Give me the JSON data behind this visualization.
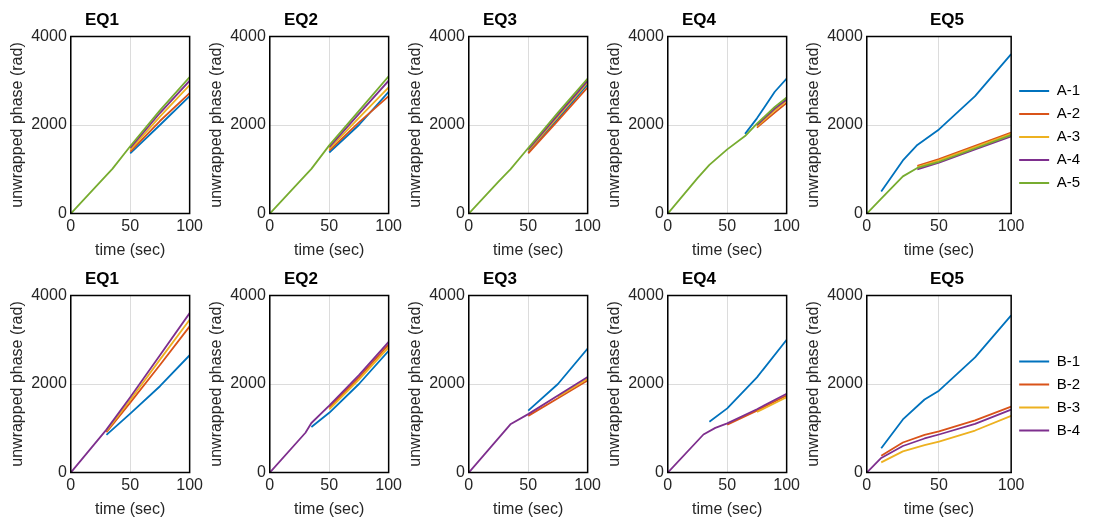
{
  "chart_data": [
    {
      "type": "line",
      "title": "EQ1",
      "xlabel": "time (sec)",
      "ylabel": "unwrapped phase (rad)",
      "x": [
        50,
        75,
        100
      ],
      "xlim": [
        0,
        100
      ],
      "xticks": [
        0,
        50,
        100
      ],
      "ylim": [
        0,
        4000
      ],
      "yticks": [
        0,
        2000,
        4000
      ],
      "grid": true,
      "legend": false,
      "series": [
        {
          "color": "#0072bd",
          "values": [
            1360,
            2000,
            2650
          ]
        },
        {
          "color": "#d95319",
          "values": [
            1400,
            2090,
            2720
          ]
        },
        {
          "color": "#edb120",
          "values": [
            1440,
            2190,
            2900
          ]
        },
        {
          "color": "#7e2f8e",
          "values": [
            1480,
            2270,
            3000
          ]
        },
        {
          "color": "#77ac30",
          "x": [
            0,
            25,
            35,
            50,
            75,
            100
          ],
          "values": [
            0,
            720,
            1010,
            1520,
            2330,
            3080
          ]
        }
      ]
    },
    {
      "type": "line",
      "title": "EQ2",
      "xlabel": "time (sec)",
      "ylabel": "unwrapped phase (rad)",
      "x": [
        50,
        75,
        100
      ],
      "xlim": [
        0,
        100
      ],
      "xticks": [
        0,
        50,
        100
      ],
      "ylim": [
        0,
        4000
      ],
      "yticks": [
        0,
        2000,
        4000
      ],
      "grid": true,
      "legend": false,
      "series": [
        {
          "color": "#0072bd",
          "values": [
            1380,
            2000,
            2750
          ]
        },
        {
          "color": "#d95319",
          "values": [
            1420,
            2060,
            2650
          ]
        },
        {
          "color": "#edb120",
          "values": [
            1460,
            2160,
            2850
          ]
        },
        {
          "color": "#7e2f8e",
          "values": [
            1500,
            2250,
            3000
          ]
        },
        {
          "color": "#77ac30",
          "x": [
            0,
            25,
            35,
            50,
            75,
            100
          ],
          "values": [
            0,
            720,
            1010,
            1540,
            2320,
            3100
          ]
        }
      ]
    },
    {
      "type": "line",
      "title": "EQ3",
      "xlabel": "time (sec)",
      "ylabel": "unwrapped phase (rad)",
      "x": [
        50,
        75,
        100
      ],
      "xlim": [
        0,
        100
      ],
      "xticks": [
        0,
        50,
        100
      ],
      "ylim": [
        0,
        4000
      ],
      "yticks": [
        0,
        2000,
        4000
      ],
      "grid": true,
      "legend": false,
      "series": [
        {
          "color": "#0072bd",
          "values": [
            1400,
            2140,
            2920
          ]
        },
        {
          "color": "#d95319",
          "values": [
            1360,
            2100,
            2850
          ]
        },
        {
          "color": "#edb120",
          "values": [
            1420,
            2190,
            2960
          ]
        },
        {
          "color": "#7e2f8e",
          "values": [
            1450,
            2230,
            3000
          ]
        },
        {
          "color": "#77ac30",
          "x": [
            0,
            25,
            35,
            50,
            75,
            100
          ],
          "values": [
            0,
            720,
            1000,
            1480,
            2280,
            3050
          ]
        }
      ]
    },
    {
      "type": "line",
      "title": "EQ4",
      "xlabel": "time (sec)",
      "ylabel": "unwrapped phase (rad)",
      "x": [
        75,
        90,
        100
      ],
      "xlim": [
        0,
        100
      ],
      "xticks": [
        0,
        50,
        100
      ],
      "ylim": [
        0,
        4000
      ],
      "yticks": [
        0,
        2000,
        4000
      ],
      "grid": true,
      "legend": false,
      "series": [
        {
          "color": "#0072bd",
          "x": [
            65,
            75,
            90,
            100
          ],
          "values": [
            1800,
            2150,
            2750,
            3050
          ]
        },
        {
          "color": "#d95319",
          "values": [
            1940,
            2280,
            2500
          ]
        },
        {
          "color": "#edb120",
          "values": [
            1970,
            2330,
            2550
          ]
        },
        {
          "color": "#7e2f8e",
          "values": [
            2000,
            2370,
            2580
          ]
        },
        {
          "color": "#77ac30",
          "x": [
            0,
            25,
            35,
            50,
            65,
            75,
            90,
            100
          ],
          "values": [
            0,
            800,
            1100,
            1450,
            1750,
            2030,
            2410,
            2620
          ]
        }
      ]
    },
    {
      "type": "line",
      "title": "EQ5",
      "xlabel": "time (sec)",
      "ylabel": "unwrapped phase (rad)",
      "x": [
        35,
        50,
        75,
        100
      ],
      "xlim": [
        0,
        100
      ],
      "xticks": [
        0,
        50,
        100
      ],
      "ylim": [
        0,
        4000
      ],
      "yticks": [
        0,
        2000,
        4000
      ],
      "grid": true,
      "legend": "right",
      "series": [
        {
          "name": "A-1",
          "color": "#0072bd",
          "x": [
            10,
            25,
            35,
            50,
            75,
            100
          ],
          "values": [
            500,
            1200,
            1550,
            1900,
            2650,
            3600
          ]
        },
        {
          "name": "A-2",
          "color": "#d95319",
          "values": [
            1080,
            1230,
            1530,
            1830
          ]
        },
        {
          "name": "A-3",
          "color": "#edb120",
          "values": [
            1050,
            1200,
            1500,
            1800
          ]
        },
        {
          "name": "A-4",
          "color": "#7e2f8e",
          "values": [
            1000,
            1150,
            1450,
            1740
          ]
        },
        {
          "name": "A-5",
          "color": "#77ac30",
          "x": [
            0,
            10,
            25,
            35,
            50,
            75,
            100
          ],
          "values": [
            0,
            340,
            840,
            1030,
            1170,
            1470,
            1770
          ]
        }
      ]
    },
    {
      "type": "line",
      "title": "EQ1",
      "xlabel": "time (sec)",
      "ylabel": "unwrapped phase (rad)",
      "x": [
        30,
        50,
        75,
        100
      ],
      "xlim": [
        0,
        100
      ],
      "xticks": [
        0,
        50,
        100
      ],
      "ylim": [
        0,
        4000
      ],
      "yticks": [
        0,
        2000,
        4000
      ],
      "grid": true,
      "legend": false,
      "series": [
        {
          "color": "#0072bd",
          "values": [
            850,
            1330,
            1950,
            2650
          ]
        },
        {
          "color": "#d95319",
          "values": [
            910,
            1580,
            2430,
            3300
          ]
        },
        {
          "color": "#edb120",
          "values": [
            940,
            1640,
            2550,
            3450
          ]
        },
        {
          "color": "#7e2f8e",
          "x": [
            0,
            30,
            50,
            75,
            100
          ],
          "values": [
            0,
            970,
            1700,
            2650,
            3600
          ]
        }
      ]
    },
    {
      "type": "line",
      "title": "EQ2",
      "xlabel": "time (sec)",
      "ylabel": "unwrapped phase (rad)",
      "x": [
        50,
        75,
        100
      ],
      "xlim": [
        0,
        100
      ],
      "xticks": [
        0,
        50,
        100
      ],
      "ylim": [
        0,
        4000
      ],
      "yticks": [
        0,
        2000,
        4000
      ],
      "grid": true,
      "legend": false,
      "series": [
        {
          "color": "#0072bd",
          "x": [
            35,
            50,
            75,
            100
          ],
          "values": [
            1030,
            1350,
            2000,
            2750
          ]
        },
        {
          "color": "#d95319",
          "values": [
            1470,
            2150,
            2890
          ]
        },
        {
          "color": "#edb120",
          "values": [
            1430,
            2100,
            2830
          ]
        },
        {
          "color": "#7e2f8e",
          "x": [
            0,
            30,
            35,
            50,
            75,
            100
          ],
          "values": [
            0,
            900,
            1120,
            1510,
            2200,
            2950
          ]
        }
      ]
    },
    {
      "type": "line",
      "title": "EQ3",
      "xlabel": "time (sec)",
      "ylabel": "unwrapped phase (rad)",
      "x": [
        50,
        75,
        100
      ],
      "xlim": [
        0,
        100
      ],
      "xticks": [
        0,
        50,
        100
      ],
      "ylim": [
        0,
        4000
      ],
      "yticks": [
        0,
        2000,
        4000
      ],
      "grid": true,
      "legend": false,
      "series": [
        {
          "color": "#0072bd",
          "values": [
            1400,
            2000,
            2800
          ]
        },
        {
          "color": "#d95319",
          "values": [
            1280,
            1680,
            2080
          ]
        },
        {
          "color": "#edb120",
          "x": [
            75,
            100
          ],
          "values": [
            1710,
            2120
          ]
        },
        {
          "color": "#7e2f8e",
          "x": [
            0,
            35,
            50,
            75,
            100
          ],
          "values": [
            0,
            1090,
            1320,
            1740,
            2160
          ]
        }
      ]
    },
    {
      "type": "line",
      "title": "EQ4",
      "xlabel": "time (sec)",
      "ylabel": "unwrapped phase (rad)",
      "x": [
        50,
        75,
        100
      ],
      "xlim": [
        0,
        100
      ],
      "xticks": [
        0,
        50,
        100
      ],
      "ylim": [
        0,
        4000
      ],
      "yticks": [
        0,
        2000,
        4000
      ],
      "grid": true,
      "legend": false,
      "series": [
        {
          "color": "#0072bd",
          "x": [
            35,
            50,
            75,
            100
          ],
          "values": [
            1150,
            1450,
            2150,
            3000
          ]
        },
        {
          "color": "#d95319",
          "values": [
            1080,
            1400,
            1740
          ]
        },
        {
          "color": "#edb120",
          "x": [
            75,
            100
          ],
          "values": [
            1370,
            1700
          ]
        },
        {
          "color": "#7e2f8e",
          "x": [
            0,
            30,
            40,
            50,
            75,
            100
          ],
          "values": [
            0,
            860,
            1010,
            1110,
            1430,
            1780
          ]
        }
      ]
    },
    {
      "type": "line",
      "title": "EQ5",
      "xlabel": "time (sec)",
      "ylabel": "unwrapped phase (rad)",
      "x": [
        10,
        25,
        40,
        50,
        75,
        100
      ],
      "xlim": [
        0,
        100
      ],
      "xticks": [
        0,
        50,
        100
      ],
      "ylim": [
        0,
        4000
      ],
      "yticks": [
        0,
        2000,
        4000
      ],
      "grid": true,
      "legend": "right",
      "series": [
        {
          "name": "B-1",
          "color": "#0072bd",
          "values": [
            550,
            1200,
            1650,
            1850,
            2600,
            3550
          ]
        },
        {
          "name": "B-2",
          "color": "#d95319",
          "values": [
            380,
            680,
            850,
            930,
            1180,
            1490
          ]
        },
        {
          "name": "B-3",
          "color": "#edb120",
          "values": [
            230,
            480,
            620,
            700,
            950,
            1280
          ]
        },
        {
          "name": "B-4",
          "color": "#7e2f8e",
          "x": [
            0,
            10,
            25,
            40,
            50,
            75,
            100
          ],
          "values": [
            0,
            330,
            600,
            770,
            860,
            1100,
            1420
          ]
        }
      ]
    }
  ]
}
